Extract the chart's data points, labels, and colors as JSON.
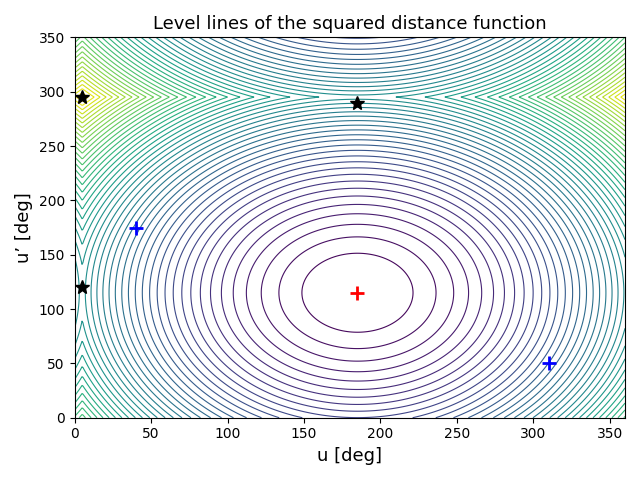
{
  "title": "Level lines of the squared distance function",
  "xlabel": "u [deg]",
  "ylabel": "u’ [deg]",
  "xlim": [
    0,
    360
  ],
  "ylim": [
    0,
    350
  ],
  "xticks": [
    0,
    50,
    100,
    150,
    200,
    250,
    300,
    350
  ],
  "yticks": [
    0,
    50,
    100,
    150,
    200,
    250,
    300,
    350
  ],
  "cmap": "viridis",
  "num_levels": 50,
  "ref_u": 185.0,
  "ref_v": 115.0,
  "period_u": 360.0,
  "period_v": 360.0,
  "red_plus": [
    185.0,
    115.0
  ],
  "blue_plus_1": [
    40.0,
    175.0
  ],
  "blue_plus_2": [
    310.0,
    50.0
  ],
  "star_1": [
    5.0,
    295.0
  ],
  "star_2": [
    185.0,
    290.0
  ],
  "star_3": [
    5.0,
    120.0
  ],
  "figsize": [
    6.4,
    4.8
  ],
  "dpi": 100
}
